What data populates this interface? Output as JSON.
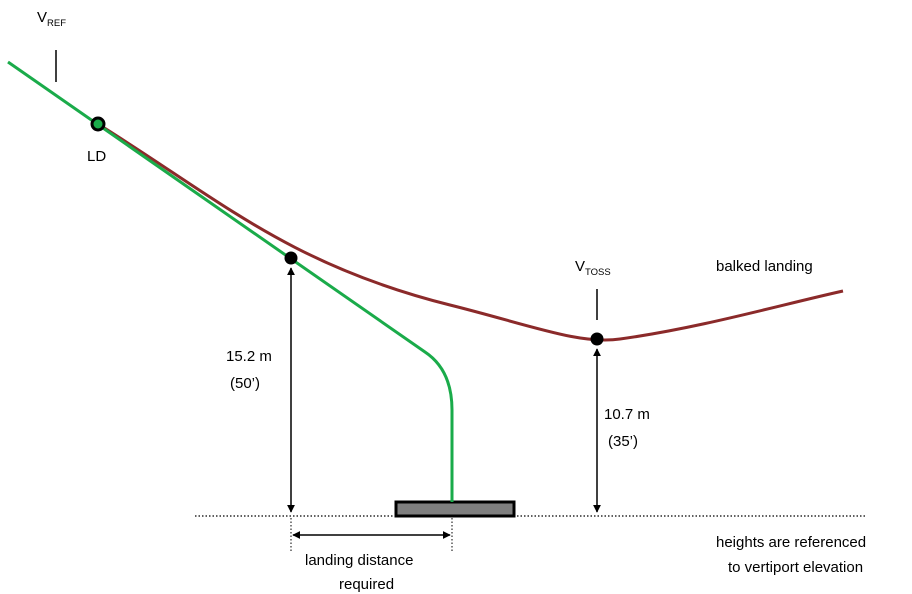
{
  "labels": {
    "vref": {
      "main": "V",
      "sub": "REF"
    },
    "vtoss": {
      "main": "V",
      "sub": "TOSS"
    },
    "ld": "LD",
    "balked_landing": "balked landing",
    "height_left_m": "15.2 m",
    "height_left_ft": "(50’)",
    "height_right_m": "10.7 m",
    "height_right_ft": "(35’)",
    "landing_distance_line1": "landing distance",
    "landing_distance_line2": "required",
    "note_line1": "heights are referenced",
    "note_line2": "to vertiport elevation"
  },
  "colors": {
    "approach_path": "#1aab4a",
    "balked_path": "#8b2a2a",
    "pad_fill": "#7f7f7f"
  }
}
